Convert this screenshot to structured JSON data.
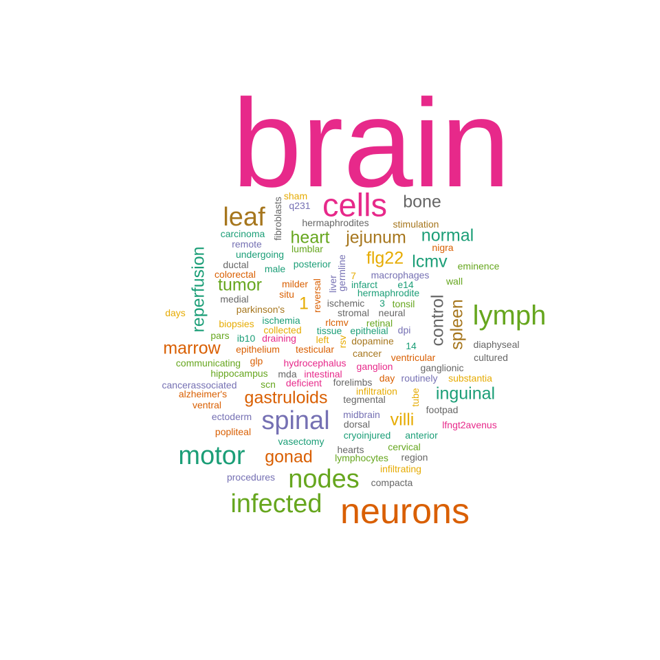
{
  "colors": {
    "magenta": "#e7298a",
    "orange": "#d95f02",
    "green": "#66a61e",
    "teal": "#1b9e77",
    "purple": "#7570b3",
    "brown": "#a6761d",
    "yellow": "#e6ab02",
    "gray": "#666666"
  },
  "words": [
    {
      "text": "brain",
      "color": "magenta"
    },
    {
      "text": "neurons",
      "color": "orange"
    },
    {
      "text": "cells",
      "color": "magenta"
    },
    {
      "text": "lymph",
      "color": "green"
    },
    {
      "text": "nodes",
      "color": "green"
    },
    {
      "text": "infected",
      "color": "green"
    },
    {
      "text": "motor",
      "color": "teal"
    },
    {
      "text": "spinal",
      "color": "purple"
    },
    {
      "text": "leaf",
      "color": "brown"
    },
    {
      "text": "bone",
      "color": "gray"
    },
    {
      "text": "marrow",
      "color": "orange"
    },
    {
      "text": "gonad",
      "color": "orange"
    },
    {
      "text": "inguinal",
      "color": "teal"
    },
    {
      "text": "heart",
      "color": "green"
    },
    {
      "text": "jejunum",
      "color": "brown"
    },
    {
      "text": "normal",
      "color": "teal"
    },
    {
      "text": "tumor",
      "color": "green"
    },
    {
      "text": "gastruloids",
      "color": "orange"
    },
    {
      "text": "villi",
      "color": "yellow"
    },
    {
      "text": "flg22",
      "color": "yellow"
    },
    {
      "text": "lcmv",
      "color": "teal"
    },
    {
      "text": "reperfusion",
      "color": "teal"
    },
    {
      "text": "control",
      "color": "gray"
    },
    {
      "text": "spleen",
      "color": "brown"
    },
    {
      "text": "1",
      "color": "yellow"
    },
    {
      "text": "sham",
      "color": "yellow"
    },
    {
      "text": "q231",
      "color": "purple"
    },
    {
      "text": "fibroblasts",
      "color": "gray"
    },
    {
      "text": "hermaphrodites",
      "color": "gray"
    },
    {
      "text": "stimulation",
      "color": "brown"
    },
    {
      "text": "carcinoma",
      "color": "teal"
    },
    {
      "text": "remote",
      "color": "purple"
    },
    {
      "text": "undergoing",
      "color": "teal"
    },
    {
      "text": "lumblar",
      "color": "green"
    },
    {
      "text": "nigra",
      "color": "orange"
    },
    {
      "text": "eminence",
      "color": "green"
    },
    {
      "text": "ductal",
      "color": "gray"
    },
    {
      "text": "male",
      "color": "teal"
    },
    {
      "text": "posterior",
      "color": "teal"
    },
    {
      "text": "germline",
      "color": "purple"
    },
    {
      "text": "colorectal",
      "color": "orange"
    },
    {
      "text": "7",
      "color": "yellow"
    },
    {
      "text": "macrophages",
      "color": "purple"
    },
    {
      "text": "wall",
      "color": "green"
    },
    {
      "text": "milder",
      "color": "orange"
    },
    {
      "text": "liver",
      "color": "purple"
    },
    {
      "text": "infarct",
      "color": "teal"
    },
    {
      "text": "e14",
      "color": "teal"
    },
    {
      "text": "medial",
      "color": "gray"
    },
    {
      "text": "situ",
      "color": "orange"
    },
    {
      "text": "reversal",
      "color": "orange"
    },
    {
      "text": "hermaphrodite",
      "color": "teal"
    },
    {
      "text": "ischemic",
      "color": "gray"
    },
    {
      "text": "3",
      "color": "teal"
    },
    {
      "text": "tonsil",
      "color": "green"
    },
    {
      "text": "days",
      "color": "yellow"
    },
    {
      "text": "parkinson's",
      "color": "brown"
    },
    {
      "text": "stromal",
      "color": "gray"
    },
    {
      "text": "neural",
      "color": "gray"
    },
    {
      "text": "ischemia",
      "color": "teal"
    },
    {
      "text": "biopsies",
      "color": "yellow"
    },
    {
      "text": "rlcmv",
      "color": "orange"
    },
    {
      "text": "retinal",
      "color": "green"
    },
    {
      "text": "collected",
      "color": "yellow"
    },
    {
      "text": "tissue",
      "color": "teal"
    },
    {
      "text": "epithelial",
      "color": "teal"
    },
    {
      "text": "dpi",
      "color": "purple"
    },
    {
      "text": "pars",
      "color": "green"
    },
    {
      "text": "ib10",
      "color": "teal"
    },
    {
      "text": "draining",
      "color": "magenta"
    },
    {
      "text": "left",
      "color": "yellow"
    },
    {
      "text": "rsv",
      "color": "yellow"
    },
    {
      "text": "dopamine",
      "color": "brown"
    },
    {
      "text": "diaphyseal",
      "color": "gray"
    },
    {
      "text": "epithelium",
      "color": "orange"
    },
    {
      "text": "testicular",
      "color": "orange"
    },
    {
      "text": "14",
      "color": "teal"
    },
    {
      "text": "cancer",
      "color": "brown"
    },
    {
      "text": "ventricular",
      "color": "orange"
    },
    {
      "text": "cultured",
      "color": "gray"
    },
    {
      "text": "communicating",
      "color": "green"
    },
    {
      "text": "glp",
      "color": "orange"
    },
    {
      "text": "hydrocephalus",
      "color": "magenta"
    },
    {
      "text": "ganglion",
      "color": "magenta"
    },
    {
      "text": "ganglionic",
      "color": "gray"
    },
    {
      "text": "hippocampus",
      "color": "green"
    },
    {
      "text": "mda",
      "color": "gray"
    },
    {
      "text": "intestinal",
      "color": "magenta"
    },
    {
      "text": "day",
      "color": "orange"
    },
    {
      "text": "routinely",
      "color": "purple"
    },
    {
      "text": "substantia",
      "color": "yellow"
    },
    {
      "text": "cancerassociated",
      "color": "purple"
    },
    {
      "text": "scn",
      "color": "green"
    },
    {
      "text": "deficient",
      "color": "magenta"
    },
    {
      "text": "forelimbs",
      "color": "gray"
    },
    {
      "text": "alzheimer's",
      "color": "orange"
    },
    {
      "text": "infiltration",
      "color": "yellow"
    },
    {
      "text": "tube",
      "color": "yellow"
    },
    {
      "text": "ventral",
      "color": "orange"
    },
    {
      "text": "tegmental",
      "color": "gray"
    },
    {
      "text": "footpad",
      "color": "gray"
    },
    {
      "text": "ectoderm",
      "color": "purple"
    },
    {
      "text": "midbrain",
      "color": "purple"
    },
    {
      "text": "dorsal",
      "color": "gray"
    },
    {
      "text": "lfngt2avenus",
      "color": "magenta"
    },
    {
      "text": "popliteal",
      "color": "orange"
    },
    {
      "text": "cryoinjured",
      "color": "teal"
    },
    {
      "text": "anterior",
      "color": "teal"
    },
    {
      "text": "vasectomy",
      "color": "teal"
    },
    {
      "text": "cervical",
      "color": "green"
    },
    {
      "text": "hearts",
      "color": "gray"
    },
    {
      "text": "lymphocytes",
      "color": "green"
    },
    {
      "text": "region",
      "color": "gray"
    },
    {
      "text": "infiltrating",
      "color": "yellow"
    },
    {
      "text": "procedures",
      "color": "purple"
    },
    {
      "text": "compacta",
      "color": "gray"
    }
  ]
}
